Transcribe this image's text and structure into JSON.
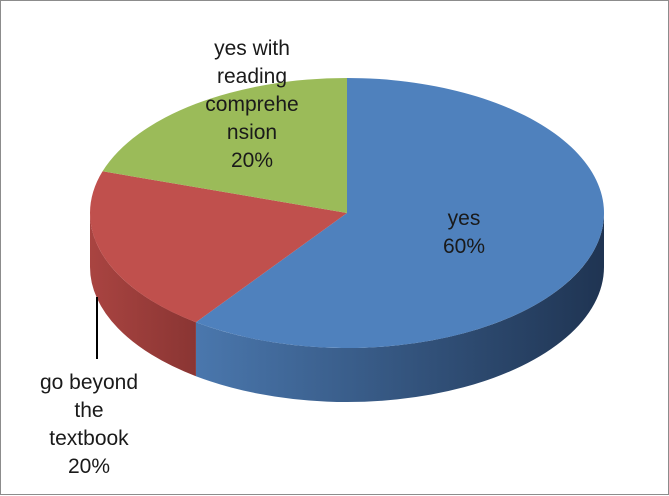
{
  "chart_data": {
    "type": "pie",
    "title": "",
    "style": "3d",
    "slices": [
      {
        "name": "yes",
        "value": 60,
        "label_lines": [
          "yes",
          "60%"
        ],
        "color": "#4f81bd"
      },
      {
        "name": "go beyond the textbook",
        "value": 20,
        "label_lines": [
          "go beyond",
          "the",
          "textbook",
          "20%"
        ],
        "color": "#c0504d"
      },
      {
        "name": "yes with reading comprehension",
        "value": 20,
        "label_lines": [
          "yes with",
          "reading",
          "comprehe",
          "nsion",
          "20%"
        ],
        "color": "#9bbb59"
      }
    ],
    "legend": "none"
  }
}
